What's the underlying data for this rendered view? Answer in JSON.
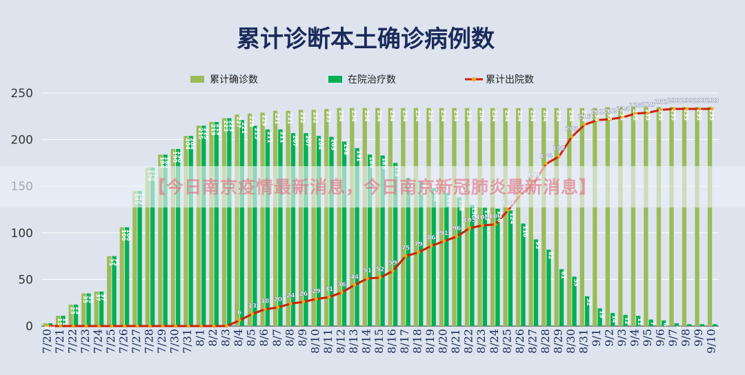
{
  "overlay_banner": "【今日南京疫情最新消息，今日南京新冠肺炎最新消息】",
  "colors": {
    "background": "#dde4ee",
    "bar_total": "#9bbb59",
    "bar_hospital": "#00b050",
    "line_discharged": "#cc2200",
    "line_marker": "#f2a81a"
  },
  "chart_data": {
    "type": "bar",
    "title": "累计诊断本土确诊病例数",
    "legend_position": "top",
    "grid": true,
    "ylim": [
      0,
      250
    ],
    "yticks": [
      0,
      50,
      100,
      150,
      200,
      250
    ],
    "categories": [
      "7/20",
      "7/21",
      "7/22",
      "7/23",
      "7/24",
      "7/25",
      "7/26",
      "7/27",
      "7/28",
      "7/29",
      "7/30",
      "7/31",
      "8/1",
      "8/2",
      "8/3",
      "8/4",
      "8/5",
      "8/6",
      "8/7",
      "8/8",
      "8/9",
      "8/10",
      "8/11",
      "8/12",
      "8/13",
      "8/14",
      "8/15",
      "8/16",
      "8/17",
      "8/18",
      "8/19",
      "8/20",
      "8/21",
      "8/22",
      "8/23",
      "8/24",
      "8/25",
      "8/26",
      "8/27",
      "8/28",
      "8/29",
      "8/30",
      "8/31",
      "9/1",
      "9/2",
      "9/3",
      "9/4",
      "9/5",
      "9/6",
      "9/7",
      "9/8",
      "9/9",
      "9/10"
    ],
    "series": [
      {
        "name": "累计确诊数",
        "type": "bar",
        "values": [
          3,
          11,
          23,
          35,
          37,
          75,
          106,
          145,
          170,
          184,
          190,
          204,
          215,
          219,
          223,
          227,
          228,
          229,
          231,
          231,
          232,
          232,
          233,
          234,
          234,
          234,
          234,
          234,
          234,
          234,
          234,
          234,
          234,
          234,
          234,
          234,
          234,
          234,
          234,
          234,
          234,
          234,
          234,
          234,
          235,
          235,
          235,
          235,
          235,
          235,
          235,
          235,
          235
        ]
      },
      {
        "name": "在院治疗数",
        "type": "bar",
        "values": [
          3,
          11,
          23,
          35,
          37,
          75,
          106,
          145,
          170,
          184,
          190,
          204,
          215,
          219,
          223,
          221,
          215,
          211,
          211,
          207,
          207,
          204,
          203,
          198,
          191,
          184,
          183,
          175,
          159,
          155,
          148,
          143,
          138,
          130,
          127,
          126,
          124,
          110,
          93,
          82,
          61,
          53,
          32,
          19,
          14,
          12,
          11,
          7,
          6,
          3,
          2,
          2,
          2
        ]
      },
      {
        "name": "累计出院数",
        "type": "line",
        "values": [
          0,
          0,
          0,
          0,
          0,
          0,
          0,
          0,
          0,
          0,
          0,
          0,
          0,
          0,
          0,
          6,
          13,
          18,
          20,
          24,
          26,
          29,
          31,
          36,
          44,
          51,
          52,
          59,
          75,
          79,
          86,
          91,
          96,
          105,
          108,
          109,
          124,
          141,
          153,
          174,
          182,
          203,
          216,
          221,
          222,
          224,
          228,
          229,
          232,
          233,
          233,
          233,
          233
        ]
      }
    ]
  }
}
